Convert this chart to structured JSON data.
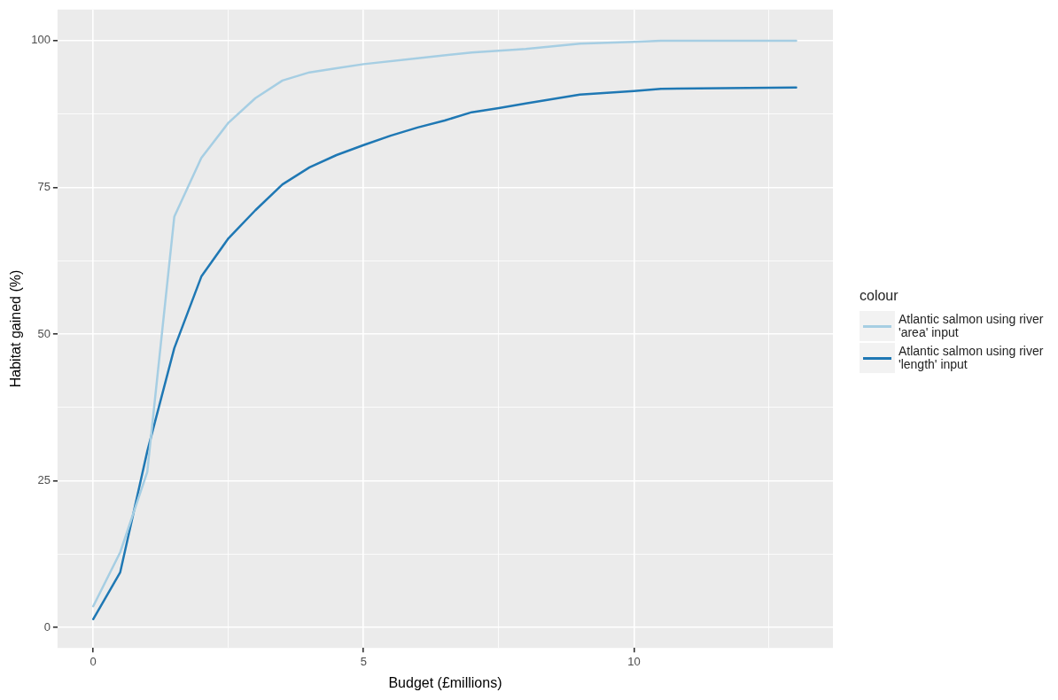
{
  "chart_data": {
    "type": "line",
    "xlabel": "Budget (£millions)",
    "ylabel": "Habitat gained (%)",
    "legend_title": "colour",
    "legend": "right",
    "grid": true,
    "marker": "none",
    "line_style": "solid",
    "xlim": [
      -0.66,
      13.68
    ],
    "ylim": [
      -3.5,
      105.3
    ],
    "xticks": [
      0,
      {
        "value": 2.5,
        "label": null
      },
      5,
      {
        "value": 7.5,
        "label": null
      },
      10,
      {
        "value": 12.5,
        "label": null
      }
    ],
    "yticks": [
      0,
      {
        "value": 12.5,
        "label": null
      },
      25,
      {
        "value": 37.5,
        "label": null
      },
      50,
      {
        "value": 62.5,
        "label": null
      },
      75,
      {
        "value": 87.5,
        "label": null
      },
      100
    ],
    "series": [
      {
        "name": "Atlantic salmon using river 'area' input",
        "color": "#a6cee3",
        "x": [
          0,
          0.5,
          1,
          1.5,
          2,
          2.5,
          3,
          3.5,
          4,
          4.5,
          5,
          6,
          7,
          8,
          9,
          10,
          10.5,
          13
        ],
        "values": [
          3.6,
          12.8,
          26.5,
          70,
          80,
          86,
          90.2,
          93.2,
          94.6,
          95.3,
          96,
          97,
          98,
          98.6,
          99.5,
          99.8,
          100,
          100
        ]
      },
      {
        "name": "Atlantic salmon using river 'length' input",
        "color": "#1f78b4",
        "x": [
          0,
          0.5,
          1,
          1.5,
          2,
          2.5,
          3,
          3.5,
          4,
          4.5,
          5,
          5.5,
          6,
          6.5,
          7,
          7.5,
          8,
          9,
          10,
          10.5,
          13
        ],
        "values": [
          1.4,
          9.4,
          30,
          47.6,
          59.8,
          66.3,
          71.1,
          75.5,
          78.4,
          80.5,
          82.2,
          83.8,
          85.2,
          86.4,
          87.8,
          88.5,
          89.3,
          90.8,
          91.4,
          91.8,
          92
        ]
      }
    ]
  }
}
